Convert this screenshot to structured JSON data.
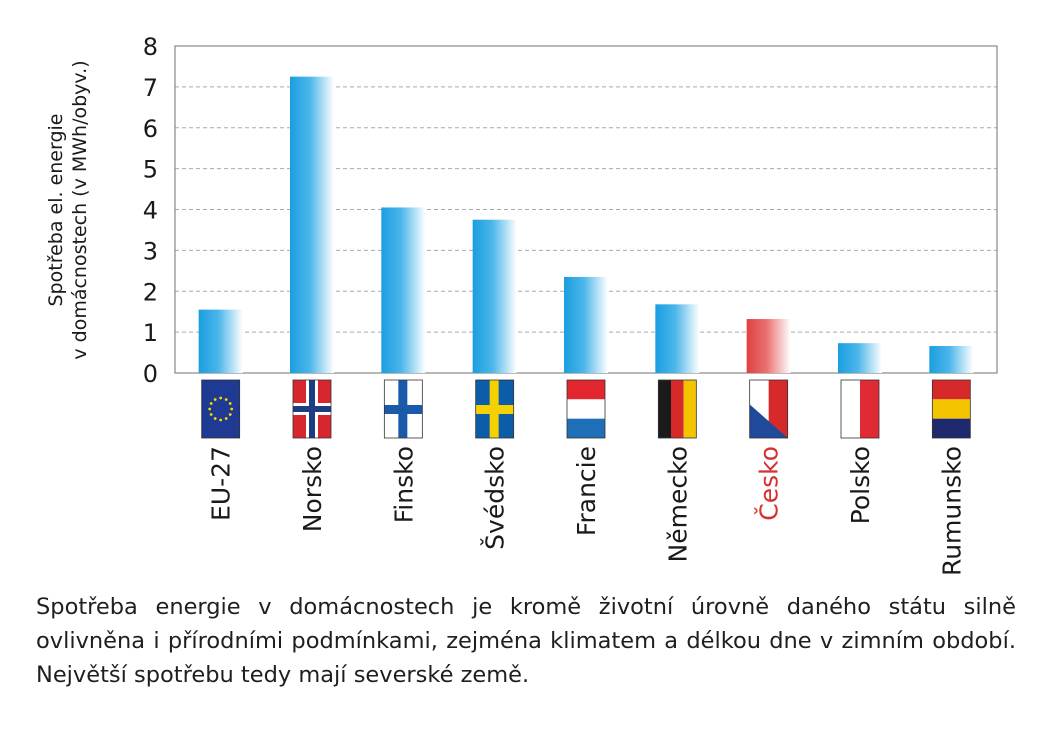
{
  "chart_data": {
    "type": "bar",
    "ylabel_lines": [
      "Spotřeba el. energie",
      "v domácnostech (v MWh/obyv.)"
    ],
    "ylim": [
      0,
      8
    ],
    "yticks": [
      0,
      1,
      2,
      3,
      4,
      5,
      6,
      7,
      8
    ],
    "grid": true,
    "categories": [
      "EU-27",
      "Norsko",
      "Finsko",
      "Švédsko",
      "Francie",
      "Německo",
      "Česko",
      "Polsko",
      "Rumunsko"
    ],
    "values": [
      1.55,
      7.25,
      4.05,
      3.75,
      2.35,
      1.68,
      1.32,
      0.73,
      0.66
    ],
    "highlight_category": "Česko",
    "colors": {
      "bar": "#1a9ee0",
      "bar_highlight": "#e04040",
      "highlight_label": "#d63030",
      "grid": "#aaaaaa",
      "frame": "#888888"
    },
    "flags": [
      "eu-flag-icon",
      "norway-flag-icon",
      "finland-flag-icon",
      "sweden-flag-icon",
      "france-flag-icon",
      "germany-flag-icon",
      "czech-flag-icon",
      "poland-flag-icon",
      "romania-flag-icon"
    ]
  },
  "caption": "Spotřeba energie v domácnostech je kromě životní úrovně daného státu silně ovlivněna i přírodními podmínkami, zejména klimatem a délkou dne v zimním období. Největší spotřebu tedy mají severské země."
}
